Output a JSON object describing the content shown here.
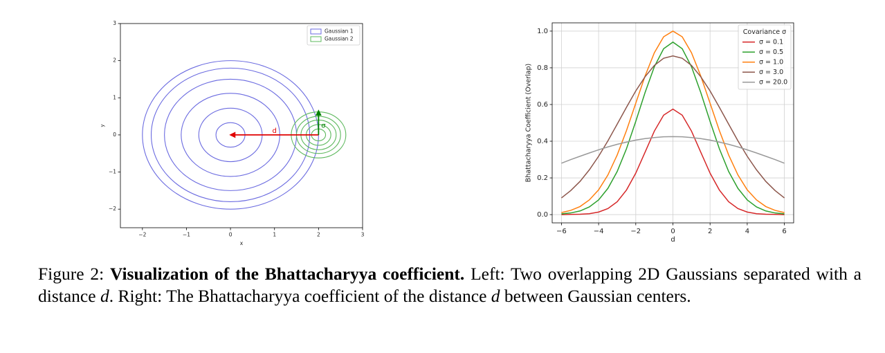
{
  "chart_data": [
    {
      "type": "contour",
      "xlabel": "x",
      "ylabel": "y",
      "xlim": [
        -2.5,
        3
      ],
      "ylim": [
        -2.5,
        3
      ],
      "xticks": [
        {
          "value": -2,
          "label": "−2"
        },
        {
          "value": -1,
          "label": "−1"
        },
        0,
        1,
        2,
        3
      ],
      "yticks": [
        {
          "value": -2,
          "label": "−2"
        },
        {
          "value": -1,
          "label": "−1"
        },
        0,
        1,
        2,
        3
      ],
      "legend": "upper right",
      "series": [
        {
          "name": "Gaussian 1",
          "color": "#6a6ae0",
          "center": [
            0,
            0
          ],
          "radii": [
            0.33,
            0.72,
            1.12,
            1.5,
            1.8,
            2.0
          ]
        },
        {
          "name": "Gaussian 2",
          "color": "#5cb85c",
          "center": [
            2,
            0
          ],
          "radii": [
            0.16,
            0.28,
            0.4,
            0.5,
            0.62
          ]
        }
      ],
      "annotations": [
        {
          "label": "d",
          "color": "#e00000",
          "from": [
            2,
            0
          ],
          "to": [
            0,
            0
          ]
        },
        {
          "label": "σ",
          "color": "#008000",
          "from": [
            2,
            0
          ],
          "to": [
            2,
            0.65
          ]
        }
      ]
    },
    {
      "type": "line",
      "xlabel": "d",
      "ylabel": "Bhattacharyya Coefficient (Overlap)",
      "xlim": [
        -6.5,
        6.5
      ],
      "ylim": [
        -0.045,
        1.045
      ],
      "xticks": [
        {
          "value": -6,
          "label": "−6"
        },
        {
          "value": -4,
          "label": "−4"
        },
        {
          "value": -2,
          "label": "−2"
        },
        0,
        2,
        4,
        6
      ],
      "yticks": [
        {
          "value": 0,
          "label": "0.0"
        },
        {
          "value": 0.2,
          "label": "0.2"
        },
        {
          "value": 0.4,
          "label": "0.4"
        },
        {
          "value": 0.6,
          "label": "0.6"
        },
        {
          "value": 0.8,
          "label": "0.8"
        },
        {
          "value": 1,
          "label": "1.0"
        }
      ],
      "grid": true,
      "legend": "upper right",
      "legend_title": "Covariance σ",
      "x": [
        -6,
        -5.5,
        -5,
        -4.5,
        -4,
        -3.5,
        -3,
        -2.5,
        -2,
        -1.5,
        -1,
        -0.5,
        0,
        0.5,
        1,
        1.5,
        2,
        2.5,
        3,
        3.5,
        4,
        4.5,
        5,
        5.5,
        6
      ],
      "series": [
        {
          "name": "σ = 0.1",
          "color": "#d62728",
          "values": [
            0,
            0.001,
            0.002,
            0.005,
            0.014,
            0.033,
            0.07,
            0.134,
            0.226,
            0.34,
            0.455,
            0.542,
            0.575,
            0.542,
            0.455,
            0.34,
            0.226,
            0.134,
            0.07,
            0.033,
            0.014,
            0.005,
            0.002,
            0.001,
            0
          ]
        },
        {
          "name": "σ = 0.5",
          "color": "#2ca02c",
          "values": [
            0.004,
            0.009,
            0.02,
            0.042,
            0.08,
            0.143,
            0.235,
            0.359,
            0.508,
            0.665,
            0.806,
            0.904,
            0.94,
            0.904,
            0.806,
            0.665,
            0.508,
            0.359,
            0.235,
            0.143,
            0.08,
            0.042,
            0.02,
            0.009,
            0.004
          ]
        },
        {
          "name": "σ = 1.0",
          "color": "#ff7f0e",
          "values": [
            0.011,
            0.023,
            0.044,
            0.08,
            0.135,
            0.216,
            0.325,
            0.458,
            0.607,
            0.755,
            0.882,
            0.969,
            1,
            0.969,
            0.882,
            0.755,
            0.607,
            0.458,
            0.325,
            0.216,
            0.135,
            0.08,
            0.044,
            0.023,
            0.011
          ]
        },
        {
          "name": "σ = 3.0",
          "color": "#8c564b",
          "values": [
            0.091,
            0.131,
            0.181,
            0.244,
            0.318,
            0.402,
            0.493,
            0.585,
            0.674,
            0.751,
            0.813,
            0.852,
            0.865,
            0.852,
            0.813,
            0.751,
            0.674,
            0.585,
            0.493,
            0.402,
            0.318,
            0.244,
            0.181,
            0.131,
            0.091
          ]
        },
        {
          "name": "σ = 20.0",
          "color": "#999999",
          "values": [
            0.28,
            0.3,
            0.318,
            0.336,
            0.353,
            0.369,
            0.383,
            0.395,
            0.406,
            0.414,
            0.42,
            0.424,
            0.425,
            0.424,
            0.42,
            0.414,
            0.406,
            0.395,
            0.383,
            0.369,
            0.353,
            0.336,
            0.318,
            0.3,
            0.28
          ]
        }
      ]
    }
  ],
  "caption": {
    "parts": [
      {
        "text": "Figure 2: ",
        "style": "normal"
      },
      {
        "text": "Visualization of the Bhattacharyya coefficient.",
        "style": "bold"
      },
      {
        "text": " Left: Two overlapping 2D Gaussians separated with a distance ",
        "style": "normal"
      },
      {
        "text": "d",
        "style": "italic"
      },
      {
        "text": ". Right: The Bhattacharyya coefficient of the distance ",
        "style": "normal"
      },
      {
        "text": "d",
        "style": "italic"
      },
      {
        "text": " between Gaussian centers.",
        "style": "normal"
      }
    ]
  }
}
